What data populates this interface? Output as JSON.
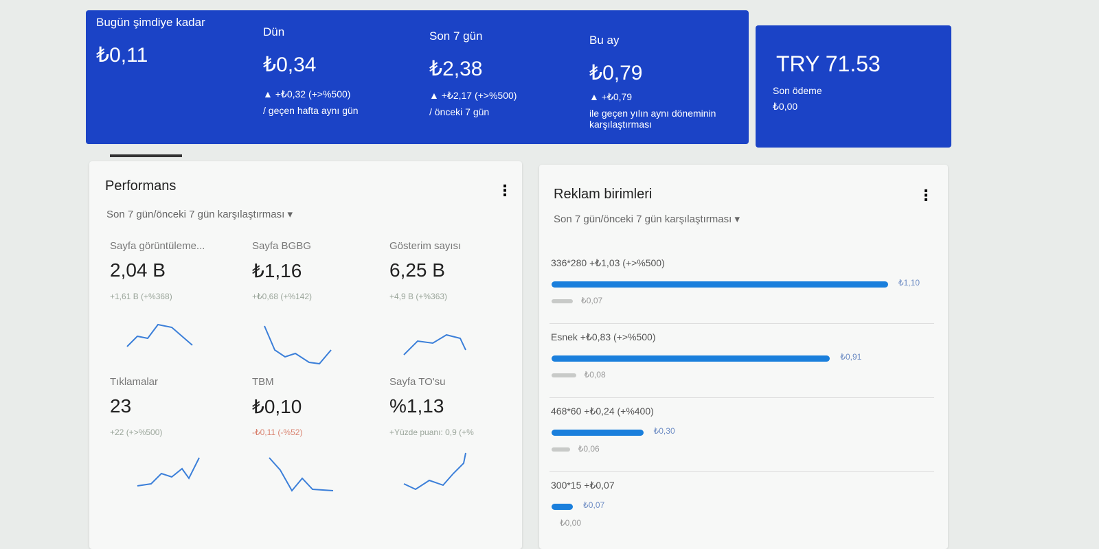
{
  "summary": [
    {
      "label": "Bugün şimdiye kadar",
      "value": "₺0,11"
    },
    {
      "label": "Dün",
      "value": "₺0,34",
      "change": "▲ +₺0,32 (+>%500)",
      "note": "/ geçen hafta aynı gün"
    },
    {
      "label": "Son 7 gün",
      "value": "₺2,38",
      "change": "▲ +₺2,17 (+>%500)",
      "note": "/ önceki 7 gün"
    },
    {
      "label": "Bu ay",
      "value": "₺0,79",
      "change": "▲ +₺0,79",
      "note": "ile geçen yılın aynı döneminin karşılaştırması"
    }
  ],
  "balance": {
    "value": "TRY 71.53",
    "label": "Son ödeme",
    "amount": "₺0,00"
  },
  "performance": {
    "title": "Performans",
    "period": "Son 7 gün/önceki 7 gün karşılaştırması",
    "metrics": [
      {
        "label": "Sayfa görüntüleme...",
        "value": "2,04 B",
        "change": "+1,61 B (+%368)"
      },
      {
        "label": "Sayfa BGBG",
        "value": "₺1,16",
        "change": "+₺0,68 (+%142)"
      },
      {
        "label": "Gösterim sayısı",
        "value": "6,25 B",
        "change": "+4,9 B (+%363)"
      },
      {
        "label": "Tıklamalar",
        "value": "23",
        "change": "+22 (+>%500)"
      },
      {
        "label": "TBM",
        "value": "₺0,10",
        "change": "-₺0,11 (-%52)"
      },
      {
        "label": "Sayfa TO'su",
        "value": "%1,13",
        "change": "+Yüzde puanı: 0,9 (+%"
      }
    ]
  },
  "ad_units": {
    "title": "Reklam birimleri",
    "period": "Son 7 gün/önceki 7 gün karşılaştırması",
    "units": [
      {
        "label": "336*280  +₺1,03 (+>%500)",
        "current": {
          "value": 1.1,
          "label": "₺1,10"
        },
        "previous": {
          "value": 0.07,
          "label": "₺0,07"
        }
      },
      {
        "label": "Esnek  +₺0,83 (+>%500)",
        "current": {
          "value": 0.91,
          "label": "₺0,91"
        },
        "previous": {
          "value": 0.08,
          "label": "₺0,08"
        }
      },
      {
        "label": "468*60  +₺0,24 (+%400)",
        "current": {
          "value": 0.3,
          "label": "₺0,30"
        },
        "previous": {
          "value": 0.06,
          "label": "₺0,06"
        }
      },
      {
        "label": "300*15  +₺0,07",
        "current": {
          "value": 0.07,
          "label": "₺0,07"
        },
        "previous": {
          "value": 0,
          "label": "₺0,00"
        }
      }
    ]
  }
}
